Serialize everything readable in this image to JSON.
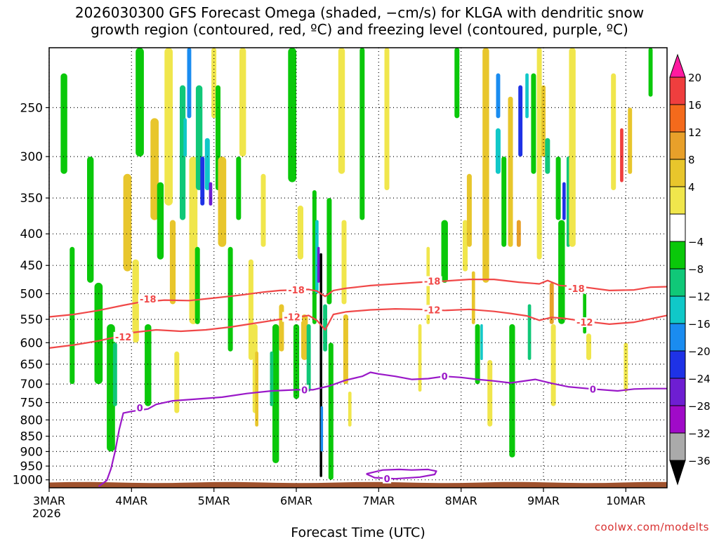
{
  "title_line1": "2026030300 GFS Forecast Omega (shaded, −cm/s) for KLGA with dendritic snow",
  "title_line2": "growth region (contoured, red, ºC) and freezing level (contoured, purple, ºC)",
  "footer_url": "coolwx.com/modelts",
  "chart_data": {
    "type": "heatmap",
    "title": "2026030300 GFS Forecast Omega (shaded, −cm/s) for KLGA with dendritic snow growth region (contoured, red, ºC) and freezing level (contoured, purple, ºC)",
    "xlabel": "Forecast Time (UTC)",
    "ylabel": "",
    "x_ticks": [
      "3MAR",
      "4MAR",
      "5MAR",
      "6MAR",
      "7MAR",
      "8MAR",
      "9MAR",
      "10MAR"
    ],
    "x_tick_year": "2026",
    "x_range_days": [
      0,
      7.5
    ],
    "y_scale": "log-pressure",
    "y_ticks": [
      250,
      300,
      350,
      400,
      450,
      500,
      550,
      600,
      650,
      700,
      750,
      800,
      850,
      900,
      950,
      1000
    ],
    "y_range_hpa": [
      200,
      1030
    ],
    "colorbar": {
      "labels": [
        "20",
        "16",
        "12",
        "8",
        "4",
        "−4",
        "−8",
        "−12",
        "−16",
        "−20",
        "−24",
        "−28",
        "−32",
        "−36"
      ],
      "bins": [
        {
          "range": ">20",
          "color": "#ff1aa0"
        },
        {
          "range": "16-20",
          "color": "#ef3e3e"
        },
        {
          "range": "12-16",
          "color": "#f46a1c"
        },
        {
          "range": "8-12",
          "color": "#e8a02a"
        },
        {
          "range": "4-8",
          "color": "#e8c62c"
        },
        {
          "range": "0-4",
          "color": "#f0e64c"
        },
        {
          "range": "-4-4",
          "color": "#ffffff"
        },
        {
          "range": "-8--4",
          "color": "#0ac80a"
        },
        {
          "range": "-12--8",
          "color": "#10c878"
        },
        {
          "range": "-16--12",
          "color": "#10c8c8"
        },
        {
          "range": "-20--16",
          "color": "#1a8cf0"
        },
        {
          "range": "-24--20",
          "color": "#1e32e6"
        },
        {
          "range": "-28--24",
          "color": "#6e1ed2"
        },
        {
          "range": "-32--28",
          "color": "#a00ac8"
        },
        {
          "range": "-36--32",
          "color": "#aaaaaa"
        },
        {
          "range": "<-36",
          "color": "#000000"
        }
      ]
    },
    "contours": [
      {
        "name": "-18",
        "units": "ºC",
        "color": "#f04848",
        "points": [
          [
            0,
            545
          ],
          [
            0.3,
            540
          ],
          [
            0.6,
            532
          ],
          [
            0.9,
            522
          ],
          [
            1.1,
            516
          ],
          [
            1.4,
            512
          ],
          [
            1.7,
            513
          ],
          [
            2.0,
            508
          ],
          [
            2.3,
            503
          ],
          [
            2.6,
            497
          ],
          [
            2.8,
            494
          ],
          [
            3.0,
            493
          ],
          [
            3.15,
            492
          ],
          [
            3.25,
            495
          ],
          [
            3.35,
            505
          ],
          [
            3.45,
            494
          ],
          [
            3.6,
            490
          ],
          [
            3.9,
            485
          ],
          [
            4.2,
            482
          ],
          [
            4.5,
            479
          ],
          [
            4.8,
            477
          ],
          [
            5.0,
            475
          ],
          [
            5.1,
            474
          ],
          [
            5.4,
            474
          ],
          [
            5.7,
            479
          ],
          [
            5.95,
            482
          ],
          [
            6.05,
            476
          ],
          [
            6.2,
            485
          ],
          [
            6.5,
            488
          ],
          [
            6.8,
            494
          ],
          [
            7.1,
            493
          ],
          [
            7.3,
            488
          ],
          [
            7.5,
            487
          ]
        ],
        "labels": [
          [
            1.2,
            510
          ],
          [
            3.0,
            493
          ],
          [
            4.65,
            477
          ],
          [
            6.4,
            490
          ]
        ]
      },
      {
        "name": "-12",
        "units": "ºC",
        "color": "#f04848",
        "points": [
          [
            0,
            612
          ],
          [
            0.3,
            605
          ],
          [
            0.6,
            596
          ],
          [
            0.8,
            588
          ],
          [
            1.0,
            578
          ],
          [
            1.3,
            572
          ],
          [
            1.6,
            575
          ],
          [
            1.9,
            572
          ],
          [
            2.2,
            566
          ],
          [
            2.5,
            558
          ],
          [
            2.8,
            550
          ],
          [
            3.0,
            546
          ],
          [
            3.15,
            542
          ],
          [
            3.25,
            552
          ],
          [
            3.35,
            572
          ],
          [
            3.45,
            540
          ],
          [
            3.6,
            535
          ],
          [
            3.9,
            531
          ],
          [
            4.2,
            529
          ],
          [
            4.5,
            530
          ],
          [
            4.8,
            532
          ],
          [
            5.1,
            530
          ],
          [
            5.4,
            534
          ],
          [
            5.6,
            538
          ],
          [
            5.8,
            543
          ],
          [
            5.95,
            552
          ],
          [
            6.1,
            546
          ],
          [
            6.25,
            548
          ],
          [
            6.5,
            554
          ],
          [
            6.8,
            560
          ],
          [
            7.1,
            556
          ],
          [
            7.3,
            549
          ],
          [
            7.5,
            542
          ]
        ],
        "labels": [
          [
            0.9,
            587
          ],
          [
            2.95,
            545
          ],
          [
            4.65,
            531
          ],
          [
            6.5,
            556
          ]
        ]
      },
      {
        "name": "0",
        "units": "ºC",
        "color": "#9a18c8",
        "points": [
          [
            0.6,
            1025
          ],
          [
            0.7,
            1002
          ],
          [
            0.75,
            960
          ],
          [
            0.8,
            900
          ],
          [
            0.85,
            830
          ],
          [
            0.9,
            780
          ],
          [
            1.0,
            775
          ],
          [
            1.2,
            768
          ],
          [
            1.3,
            755
          ],
          [
            1.5,
            745
          ],
          [
            1.8,
            740
          ],
          [
            2.1,
            735
          ],
          [
            2.4,
            725
          ],
          [
            2.7,
            718
          ],
          [
            3.0,
            715
          ],
          [
            3.2,
            715
          ],
          [
            3.4,
            705
          ],
          [
            3.6,
            690
          ],
          [
            3.8,
            680
          ],
          [
            3.9,
            670
          ],
          [
            4.0,
            674
          ],
          [
            4.2,
            680
          ],
          [
            4.4,
            688
          ],
          [
            4.6,
            686
          ],
          [
            4.8,
            680
          ],
          [
            5.0,
            683
          ],
          [
            5.2,
            688
          ],
          [
            5.4,
            692
          ],
          [
            5.6,
            697
          ],
          [
            5.9,
            688
          ],
          [
            6.1,
            698
          ],
          [
            6.3,
            707
          ],
          [
            6.6,
            713
          ],
          [
            6.9,
            718
          ],
          [
            7.1,
            713
          ],
          [
            7.3,
            712
          ],
          [
            7.5,
            712
          ]
        ],
        "labels": [
          [
            1.1,
            765
          ],
          [
            3.1,
            715
          ],
          [
            4.8,
            680
          ],
          [
            6.6,
            713
          ]
        ]
      },
      {
        "name": "0",
        "units": "ºC",
        "color": "#9a18c8",
        "closed": true,
        "points": [
          [
            3.85,
            978
          ],
          [
            4.05,
            964
          ],
          [
            4.25,
            962
          ],
          [
            4.4,
            964
          ],
          [
            4.6,
            962
          ],
          [
            4.7,
            968
          ],
          [
            4.68,
            980
          ],
          [
            4.5,
            990
          ],
          [
            4.2,
            996
          ],
          [
            3.95,
            992
          ],
          [
            3.85,
            978
          ]
        ],
        "labels": [
          [
            4.1,
            995
          ]
        ]
      }
    ]
  }
}
